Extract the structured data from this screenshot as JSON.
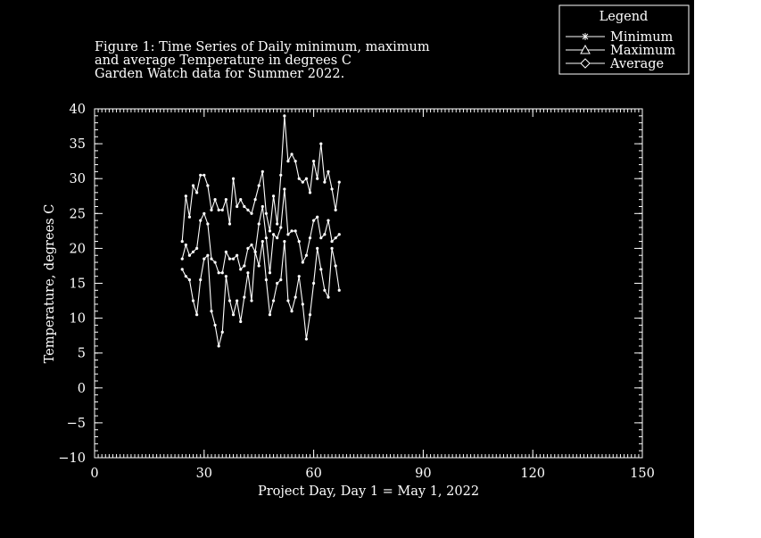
{
  "colors": {
    "background": "#000000",
    "foreground": "#ffffff"
  },
  "chart_data": {
    "type": "line",
    "title_lines": [
      "Figure 1: Time Series of Daily minimum, maximum",
      "and average Temperature in degrees C",
      "Garden Watch data for Summer 2022."
    ],
    "xlabel": "Project Day, Day 1 = May 1, 2022",
    "ylabel": "Temperature, degrees C",
    "xlim": [
      0,
      150
    ],
    "ylim": [
      -10,
      40
    ],
    "x_ticks": [
      0,
      30,
      60,
      90,
      120,
      150
    ],
    "y_ticks": [
      -10,
      -5,
      0,
      5,
      10,
      15,
      20,
      25,
      30,
      35,
      40
    ],
    "grid": false,
    "legend": {
      "title": "Legend",
      "placement": "top-right",
      "entries": [
        "Minimum",
        "Maximum",
        "Average"
      ]
    },
    "x": [
      24,
      25,
      26,
      27,
      28,
      29,
      30,
      31,
      32,
      33,
      34,
      35,
      36,
      37,
      38,
      39,
      40,
      41,
      42,
      43,
      44,
      45,
      46,
      47,
      48,
      49,
      50,
      51,
      52,
      53,
      54,
      55,
      56,
      57,
      58,
      59,
      60,
      61,
      62,
      63,
      64,
      65,
      66,
      67
    ],
    "series": [
      {
        "name": "Minimum",
        "marker": "star",
        "values": [
          17,
          16,
          15.5,
          12.5,
          10.5,
          15.5,
          18.5,
          19,
          11,
          9,
          6,
          8,
          16,
          12.5,
          10.5,
          12.5,
          9.5,
          13,
          16.5,
          12.5,
          19.5,
          17.5,
          21,
          15.5,
          10.5,
          12.5,
          15,
          15.5,
          21,
          12.5,
          11,
          13,
          16,
          12,
          7,
          10.5,
          15,
          20,
          17,
          14,
          13,
          20,
          17.5,
          14
        ]
      },
      {
        "name": "Maximum",
        "marker": "triangle",
        "values": [
          21,
          27.5,
          24.5,
          29,
          28,
          30.5,
          30.5,
          29,
          25.5,
          27,
          25.5,
          25.5,
          27,
          23.5,
          30,
          26,
          27,
          26,
          25.5,
          25,
          27,
          29,
          31,
          25,
          22.5,
          27.5,
          23.5,
          30.5,
          39,
          32.5,
          33.5,
          32.5,
          30,
          29.5,
          30,
          28,
          32.5,
          30,
          35,
          29.5,
          31,
          28.5,
          25.5,
          29.5
        ]
      },
      {
        "name": "Average",
        "marker": "diamond",
        "values": [
          18.5,
          20.5,
          19,
          19.5,
          20,
          24,
          25,
          23.5,
          18.5,
          18,
          16.5,
          16.5,
          19.5,
          18.5,
          18.5,
          19,
          17,
          17.5,
          20,
          20.5,
          19.5,
          23.5,
          26,
          21.5,
          16.5,
          22,
          21.5,
          23,
          28.5,
          22,
          22.5,
          22.5,
          21,
          18,
          19,
          21.5,
          24,
          24.5,
          21.5,
          22,
          24,
          21,
          21.5,
          22
        ]
      }
    ]
  }
}
